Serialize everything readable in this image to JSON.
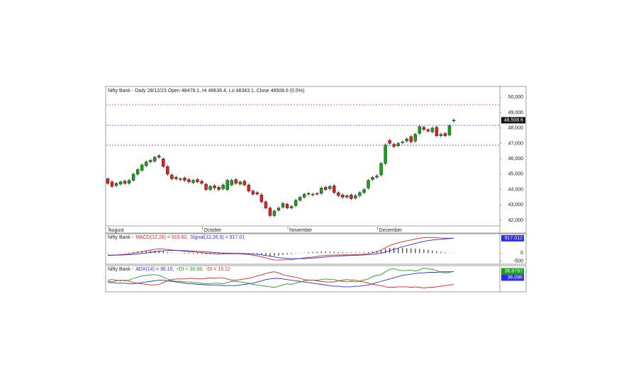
{
  "chart_data": [
    {
      "type": "candlestick",
      "title": "Nifty Bank - Daily 28/12/23 Open 48479.1, Hi 48636.4, Lo 48343.1, Close 48508.6 (0.5%)",
      "categories": [
        "August",
        null,
        null,
        null,
        null,
        null,
        null,
        null,
        null,
        null,
        null,
        null,
        null,
        null,
        null,
        null,
        null,
        null,
        null,
        null,
        null,
        null,
        "October",
        null,
        null,
        null,
        null,
        null,
        null,
        null,
        null,
        null,
        null,
        null,
        null,
        null,
        null,
        null,
        null,
        null,
        null,
        null,
        "November",
        null,
        null,
        null,
        null,
        null,
        null,
        null,
        null,
        null,
        null,
        null,
        null,
        null,
        null,
        null,
        null,
        null,
        null,
        null,
        null,
        "December",
        null,
        null,
        null,
        null,
        null,
        null,
        null,
        null,
        null,
        null,
        null,
        null,
        null,
        null,
        null,
        null,
        null,
        null
      ],
      "open": [
        44700,
        44500,
        44250,
        44350,
        44550,
        44400,
        44600,
        45000,
        45250,
        45550,
        45800,
        45850,
        46200,
        46000,
        45500,
        44950,
        44800,
        44650,
        44750,
        44650,
        44450,
        44650,
        44550,
        44350,
        44000,
        44250,
        44150,
        44050,
        44000,
        44300,
        44650,
        44350,
        44550,
        44300,
        43900,
        43800,
        43650,
        43200,
        42800,
        42300,
        42650,
        42850,
        43050,
        42800,
        42950,
        43300,
        43500,
        43750,
        43650,
        43750,
        43750,
        44150,
        44050,
        44250,
        43800,
        43650,
        43500,
        43650,
        43450,
        43600,
        43800,
        44100,
        44650,
        44800,
        44950,
        45700,
        47200,
        46950,
        46850,
        47050,
        47150,
        47450,
        47150,
        47650,
        48050,
        47900,
        47750,
        48050,
        47500,
        47650,
        47550,
        48479.1
      ],
      "high": [
        44800,
        44600,
        44500,
        44600,
        44650,
        44700,
        45100,
        45400,
        45700,
        45900,
        46000,
        46200,
        46300,
        46100,
        45600,
        45050,
        44900,
        44800,
        44850,
        44750,
        44700,
        44750,
        44650,
        44450,
        44300,
        44350,
        44250,
        44400,
        44700,
        44700,
        44750,
        44600,
        44650,
        44400,
        44000,
        43900,
        43800,
        43300,
        42900,
        42700,
        42900,
        43200,
        43150,
        43000,
        43400,
        43600,
        43800,
        43850,
        43800,
        43850,
        44200,
        44250,
        44300,
        44350,
        43900,
        43750,
        43700,
        43750,
        43700,
        43900,
        44100,
        44700,
        44900,
        45000,
        45800,
        47000,
        47300,
        47050,
        47100,
        47200,
        47400,
        47550,
        47700,
        48200,
        48150,
        48000,
        48100,
        48150,
        47700,
        47750,
        48250,
        48636.4
      ],
      "low": [
        44300,
        44100,
        44150,
        44250,
        44300,
        44300,
        44500,
        44900,
        45150,
        45450,
        45700,
        45750,
        46000,
        45400,
        44900,
        44600,
        44600,
        44550,
        44500,
        44400,
        44350,
        44400,
        44300,
        43900,
        43900,
        44000,
        43900,
        43950,
        43900,
        44200,
        44300,
        44250,
        44200,
        43800,
        43600,
        43600,
        43100,
        42700,
        42200,
        42200,
        42550,
        42750,
        42700,
        42700,
        42850,
        43200,
        43400,
        43600,
        43550,
        43600,
        43650,
        43900,
        43950,
        43700,
        43500,
        43400,
        43400,
        43300,
        43350,
        43500,
        43700,
        44000,
        44550,
        44700,
        44850,
        45600,
        46900,
        46700,
        46750,
        46950,
        47050,
        47000,
        47050,
        47550,
        47800,
        47700,
        47650,
        47400,
        47400,
        47400,
        47450,
        48343.1
      ],
      "close": [
        44400,
        44200,
        44400,
        44500,
        44400,
        44600,
        45000,
        45300,
        45600,
        45800,
        45900,
        46100,
        46100,
        45500,
        45000,
        44700,
        44700,
        44700,
        44600,
        44500,
        44600,
        44500,
        44400,
        44000,
        44200,
        44100,
        44000,
        44300,
        44600,
        44600,
        44400,
        44500,
        44300,
        43900,
        43700,
        43700,
        43200,
        42800,
        42300,
        42600,
        42800,
        43100,
        42800,
        42900,
        43300,
        43500,
        43700,
        43700,
        43700,
        43700,
        44100,
        44000,
        44200,
        43800,
        43600,
        43500,
        43600,
        43400,
        43600,
        43800,
        44000,
        44600,
        44800,
        44900,
        45700,
        46900,
        47000,
        46800,
        47000,
        47100,
        47300,
        47100,
        47600,
        48100,
        47900,
        47800,
        48000,
        47500,
        47600,
        47500,
        48150,
        48508.6
      ],
      "up_color": "#17a21a",
      "down_color": "#e3211c",
      "last_label": "48,508.6",
      "hlines": [
        {
          "value": 49510,
          "color": "#ee3333"
        },
        {
          "value": 48175,
          "color": "#3333cc"
        },
        {
          "value": 46885,
          "color": "#3333cc"
        }
      ],
      "ylim": [
        41630,
        50710
      ],
      "yticks": [
        {
          "value": 42000,
          "label": "42,000"
        },
        {
          "value": 43000,
          "label": "43,000"
        },
        {
          "value": 44000,
          "label": "44,000"
        },
        {
          "value": 45000,
          "label": "45,000"
        },
        {
          "value": 46000,
          "label": "46,000"
        },
        {
          "value": 47000,
          "label": "47,000"
        },
        {
          "value": 48000,
          "label": "48,000"
        },
        {
          "value": 49000,
          "label": "49,000"
        },
        {
          "value": 50000,
          "label": "50,000"
        }
      ]
    },
    {
      "type": "line",
      "title": "Nifty Bank -",
      "series": [
        {
          "name": "MACD(12,26) = 919.62,",
          "color": "#e3211c",
          "values": [
            -150,
            -140,
            -120,
            -100,
            -80,
            -50,
            -10,
            40,
            90,
            140,
            180,
            230,
            260,
            250,
            220,
            190,
            160,
            140,
            110,
            90,
            70,
            50,
            30,
            0,
            -20,
            -40,
            -50,
            -50,
            -40,
            -40,
            -40,
            -50,
            -60,
            -90,
            -130,
            -170,
            -230,
            -300,
            -380,
            -420,
            -430,
            -420,
            -410,
            -400,
            -370,
            -340,
            -300,
            -270,
            -240,
            -210,
            -170,
            -150,
            -130,
            -120,
            -120,
            -110,
            -110,
            -110,
            -100,
            -90,
            -70,
            -40,
            20,
            80,
            180,
            330,
            460,
            560,
            630,
            700,
            760,
            810,
            870,
            920,
            950,
            960,
            960,
            950,
            930,
            920,
            915,
            919.62
          ]
        },
        {
          "name": "Signal(12,26,9) = 917.01",
          "color": "#2b2be0",
          "end_label": "917.012",
          "values": [
            -120,
            -125,
            -124,
            -119,
            -111,
            -99,
            -81,
            -57,
            -28,
            5,
            40,
            78,
            114,
            141,
            157,
            164,
            163,
            159,
            149,
            137,
            124,
            109,
            93,
            74,
            55,
            36,
            19,
            5,
            -4,
            -11,
            -17,
            -24,
            -31,
            -43,
            -61,
            -82,
            -112,
            -149,
            -195,
            -240,
            -278,
            -306,
            -327,
            -341,
            -347,
            -346,
            -337,
            -324,
            -307,
            -288,
            -264,
            -241,
            -219,
            -199,
            -183,
            -168,
            -157,
            -147,
            -137,
            -128,
            -116,
            -101,
            -77,
            -45,
            0,
            66,
            145,
            228,
            308,
            387,
            461,
            531,
            599,
            663,
            720,
            768,
            806,
            835,
            852,
            875,
            895,
            917.01
          ]
        }
      ],
      "histogram": {
        "color": "#333333",
        "values": [
          -30,
          -15,
          4,
          19,
          31,
          49,
          71,
          97,
          118,
          135,
          140,
          152,
          146,
          109,
          63,
          26,
          -3,
          -19,
          -39,
          -47,
          -54,
          -59,
          -63,
          -74,
          -75,
          -76,
          -69,
          -55,
          -36,
          -29,
          -23,
          -26,
          -29,
          -47,
          -69,
          -88,
          -118,
          -151,
          -185,
          -180,
          -152,
          -114,
          -83,
          -59,
          -23,
          6,
          37,
          54,
          67,
          78,
          94,
          91,
          89,
          79,
          63,
          58,
          47,
          37,
          37,
          38,
          46,
          61,
          97,
          125,
          180,
          264,
          315,
          332,
          322,
          313,
          299,
          279,
          271,
          257,
          230,
          192,
          154,
          115,
          78,
          45,
          20,
          3
        ]
      },
      "ylim": [
        -600,
        1150
      ],
      "yticks": [
        0,
        -500
      ]
    },
    {
      "type": "line",
      "title": "Nifty Bank -",
      "series": [
        {
          "name": "ADX(14) = 36.10,",
          "color": "#2b2be0",
          "end_label": "36.096",
          "values": [
            18,
            18,
            17,
            17,
            17,
            16,
            16,
            17,
            18,
            19,
            20,
            21,
            22,
            22,
            21,
            20,
            19,
            18,
            17,
            16,
            16,
            15,
            15,
            14,
            14,
            14,
            14,
            13,
            13,
            13,
            13,
            14,
            15,
            16,
            17,
            19,
            21,
            23,
            24,
            25,
            25,
            24,
            23,
            22,
            21,
            20,
            19,
            18,
            17,
            16,
            15,
            14,
            13,
            12,
            12,
            11,
            11,
            11,
            12,
            12,
            13,
            14,
            16,
            18,
            20,
            22,
            24,
            26,
            28,
            30,
            31,
            32,
            33,
            34,
            34,
            35,
            35,
            35,
            36,
            36,
            36,
            36.1
          ]
        },
        {
          "name": "+DI = 36.88,",
          "color": "#17a21a",
          "end_label": "36.8797",
          "values": [
            20,
            19,
            21,
            22,
            21,
            22,
            25,
            27,
            29,
            30,
            31,
            31,
            30,
            27,
            24,
            21,
            20,
            20,
            19,
            19,
            18,
            18,
            17,
            16,
            16,
            17,
            17,
            16,
            18,
            20,
            20,
            19,
            18,
            17,
            15,
            14,
            13,
            12,
            11,
            10,
            12,
            14,
            16,
            15,
            17,
            19,
            21,
            22,
            22,
            22,
            23,
            24,
            23,
            23,
            21,
            20,
            19,
            20,
            19,
            21,
            22,
            24,
            28,
            30,
            31,
            36,
            40,
            41,
            39,
            38,
            38,
            39,
            37,
            39,
            42,
            41,
            40,
            38,
            35,
            34,
            35,
            36.88
          ]
        },
        {
          "name": "-DI = 15.12",
          "color": "#e3211c",
          "values": [
            22,
            23,
            22,
            21,
            22,
            20,
            18,
            17,
            16,
            15,
            14,
            14,
            15,
            18,
            21,
            23,
            24,
            24,
            24,
            25,
            25,
            24,
            24,
            25,
            26,
            25,
            26,
            26,
            24,
            22,
            22,
            23,
            24,
            25,
            27,
            29,
            31,
            33,
            35,
            36,
            34,
            31,
            29,
            28,
            27,
            25,
            23,
            22,
            22,
            21,
            20,
            19,
            19,
            19,
            21,
            22,
            23,
            22,
            22,
            20,
            19,
            17,
            15,
            14,
            13,
            11,
            10,
            10,
            11,
            11,
            11,
            10,
            11,
            10,
            9,
            10,
            10,
            11,
            12,
            13,
            14,
            15.12
          ]
        }
      ],
      "ylim": [
        5,
        45
      ]
    }
  ]
}
